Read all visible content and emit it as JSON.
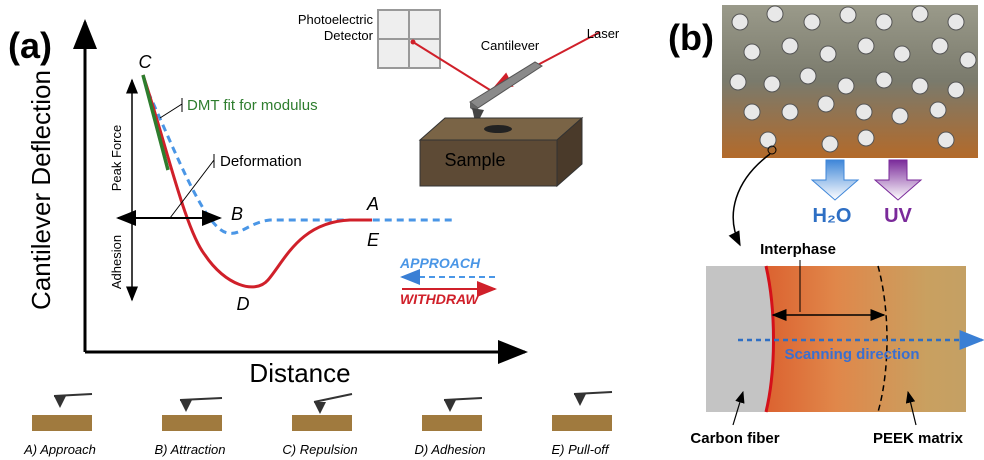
{
  "panel_a": {
    "label": "(a)",
    "y_axis": "Cantilever Deflection",
    "x_axis": "Distance",
    "points": {
      "A": "A",
      "B": "B",
      "C": "C",
      "D": "D",
      "E": "E"
    },
    "annotations": {
      "dmt": "DMT fit for modulus",
      "deformation": "Deformation",
      "peak_force": "Peak Force",
      "adhesion": "Adhesion"
    },
    "legend": {
      "approach": "APPROACH",
      "withdraw": "WITHDRAW"
    },
    "setup": {
      "detector": [
        "Photoelectric",
        "Detector"
      ],
      "cantilever": "Cantilever",
      "laser": "Laser",
      "sample": "Sample"
    },
    "stages": [
      "A) Approach",
      "B) Attraction",
      "C) Repulsion",
      "D) Adhesion",
      "E) Pull-off"
    ]
  },
  "panel_b": {
    "label": "(b)",
    "agents": [
      "H₂O",
      "UV"
    ],
    "interphase": "Interphase",
    "scanning": "Scanning direction",
    "carbon_fiber": "Carbon fiber",
    "matrix": "PEEK matrix"
  }
}
